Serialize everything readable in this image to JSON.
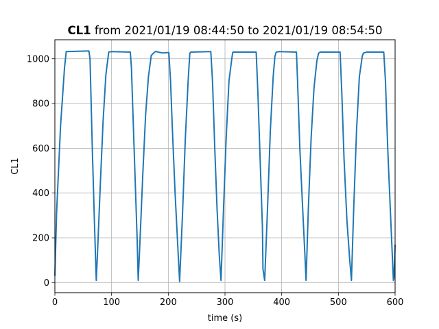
{
  "chart_data": {
    "type": "line",
    "title": {
      "bold": "CL1",
      "rest": " from 2021/01/19 08:44:50 to 2021/01/19 08:54:50"
    },
    "xlabel": "time (s)",
    "ylabel": "CL1",
    "xlim": [
      0,
      600
    ],
    "ylim": [
      -45,
      1085
    ],
    "xticks": [
      0,
      100,
      200,
      300,
      400,
      500,
      600
    ],
    "yticks": [
      0,
      200,
      400,
      600,
      800,
      1000
    ],
    "grid": true,
    "series": [
      {
        "color": "#1f77b4",
        "x": [
          0,
          3,
          10,
          17,
          20,
          60,
          62,
          66,
          70,
          73,
          75,
          80,
          85,
          90,
          95,
          100,
          133,
          135,
          140,
          145,
          147,
          150,
          155,
          160,
          165,
          170,
          176,
          178,
          182,
          186,
          190,
          201,
          204,
          207,
          212,
          217,
          220,
          225,
          230,
          235,
          237,
          238,
          240,
          275,
          278,
          282,
          286,
          290,
          293,
          297,
          302,
          307,
          312,
          313,
          314,
          316,
          355,
          358,
          362,
          366,
          367,
          370,
          375,
          380,
          385,
          388,
          390,
          391,
          395,
          426,
          428,
          432,
          437,
          441,
          443,
          447,
          452,
          457,
          462,
          465,
          467,
          468,
          470,
          503,
          506,
          510,
          515,
          520,
          523,
          527,
          532,
          537,
          542,
          544,
          546,
          548,
          550,
          580,
          583,
          587,
          592,
          597,
          598,
          600
        ],
        "y": [
          30,
          310,
          700,
          960,
          1032,
          1035,
          1000,
          600,
          250,
          10,
          120,
          430,
          720,
          930,
          1030,
          1032,
          1030,
          960,
          580,
          200,
          10,
          180,
          480,
          750,
          920,
          1015,
          1030,
          1033,
          1030,
          1028,
          1026,
          1028,
          900,
          700,
          400,
          150,
          5,
          300,
          640,
          900,
          985,
          1025,
          1030,
          1032,
          900,
          600,
          330,
          120,
          10,
          300,
          640,
          900,
          1000,
          1018,
          1030,
          1030,
          1030,
          850,
          550,
          250,
          60,
          10,
          330,
          680,
          920,
          1010,
          1028,
          1030,
          1032,
          1030,
          900,
          600,
          330,
          120,
          10,
          330,
          650,
          870,
          990,
          1025,
          1028,
          1030,
          1030,
          1030,
          850,
          550,
          280,
          100,
          10,
          330,
          680,
          920,
          1010,
          1025,
          1027,
          1028,
          1030,
          1030,
          900,
          600,
          300,
          10,
          20,
          170
        ]
      }
    ]
  }
}
